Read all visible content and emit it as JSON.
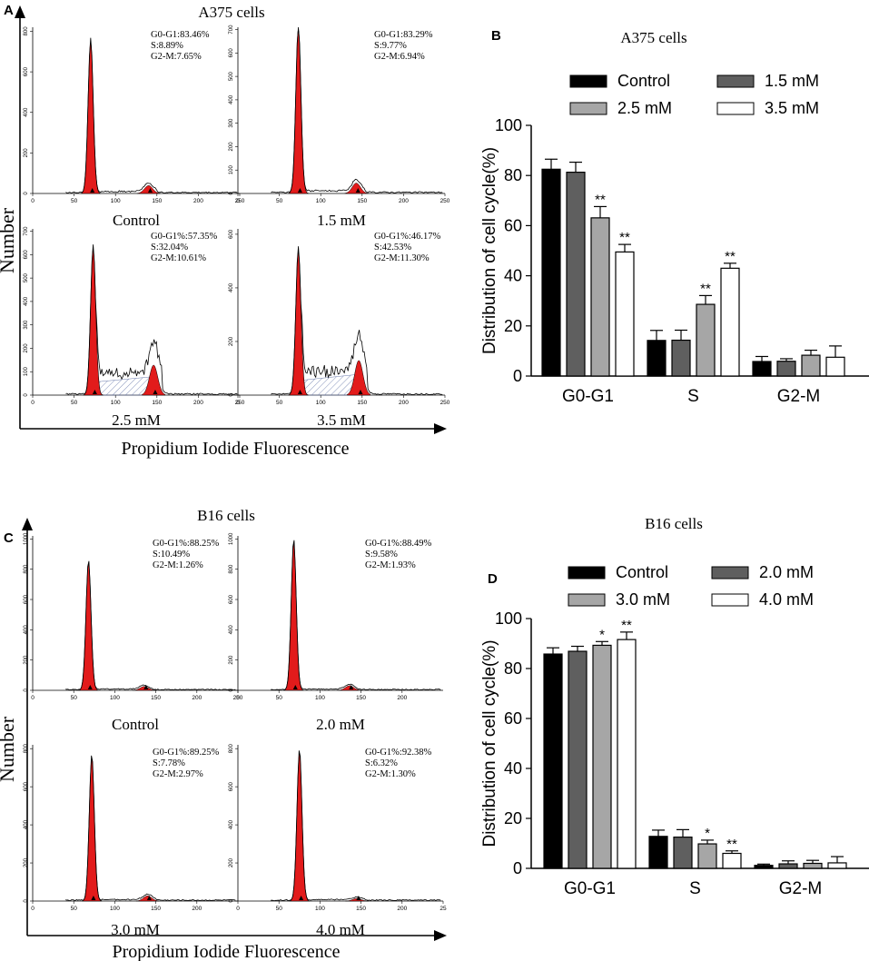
{
  "chart_data": [
    {
      "id": "A",
      "type": "histogram",
      "title": "A375 cells",
      "ylabel": "Number",
      "xlabel": "Propidium Iodide Fluorescence",
      "plots": [
        {
          "label": "Control",
          "stats": [
            "G0-G1:83.46%",
            "S:8.89%",
            "G2-M:7.65%"
          ],
          "yticks": [
            "0",
            "200",
            "400",
            "600",
            "800"
          ],
          "xticks": [
            "0",
            "50",
            "100",
            "150",
            "200",
            "250"
          ],
          "ymax": 840,
          "g1": 70,
          "g1_height": 760,
          "g2": 140,
          "g2_height": 40,
          "s_level": 5
        },
        {
          "label": "1.5 mM",
          "stats": [
            "G0-G1:83.29%",
            "S:9.77%",
            "G2-M:6.94%"
          ],
          "yticks": [
            "0",
            "100",
            "200",
            "300",
            "400",
            "500",
            "600",
            "700"
          ],
          "xticks": [
            "0",
            "50",
            "100",
            "150",
            "200",
            "250"
          ],
          "ymax": 720,
          "g1": 73,
          "g1_height": 710,
          "g2": 143,
          "g2_height": 45,
          "s_level": 6
        },
        {
          "label": "2.5 mM",
          "stats": [
            "G0-G1%:57.35%",
            "S:32.04%",
            "G2-M:10.61%"
          ],
          "yticks": [
            "0",
            "100",
            "200",
            "300",
            "400",
            "500",
            "600",
            "700"
          ],
          "xticks": [
            "0",
            "50",
            "100",
            "150",
            "200",
            "250"
          ],
          "ymax": 720,
          "g1": 73,
          "g1_height": 630,
          "g2": 146,
          "g2_height": 130,
          "s_level": 80
        },
        {
          "label": "3.5 mM",
          "stats": [
            "G0-G1%:46.17%",
            "S:42.53%",
            "G2-M:11.30%"
          ],
          "yticks": [
            "0",
            "200",
            "400",
            "600"
          ],
          "xticks": [
            "0",
            "50",
            "100",
            "150",
            "200",
            "250"
          ],
          "ymax": 720,
          "g1": 73,
          "g1_height": 620,
          "g2": 146,
          "g2_height": 150,
          "s_level": 90
        }
      ]
    },
    {
      "id": "B",
      "type": "bar",
      "title": "A375 cells",
      "ylabel": "Distribution of cell cycle(%)",
      "ylim": [
        0,
        100
      ],
      "yticks": [
        "0",
        "20",
        "40",
        "60",
        "80",
        "100"
      ],
      "categories": [
        "G0-G1",
        "S",
        "G2-M"
      ],
      "series": [
        {
          "name": "Control",
          "values": [
            82.5,
            14.2,
            5.8
          ],
          "errors": [
            4,
            4,
            2
          ],
          "sig": [
            "",
            "",
            ""
          ]
        },
        {
          "name": "1.5 mM",
          "values": [
            81.3,
            14.3,
            5.9
          ],
          "errors": [
            4,
            4,
            1
          ],
          "sig": [
            "",
            "",
            ""
          ]
        },
        {
          "name": "2.5 mM",
          "values": [
            63.1,
            28.6,
            8.3
          ],
          "errors": [
            4.5,
            3.5,
            2
          ],
          "sig": [
            "**",
            "**",
            ""
          ]
        },
        {
          "name": "3.5 mM",
          "values": [
            49.5,
            43.0,
            7.5
          ],
          "errors": [
            3,
            2,
            4.5
          ],
          "sig": [
            "**",
            "**",
            ""
          ]
        }
      ],
      "colors": [
        "#000000",
        "#5f5f5f",
        "#a6a6a6",
        "#ffffff"
      ]
    },
    {
      "id": "C",
      "type": "histogram",
      "title": "B16 cells",
      "ylabel": "Number",
      "xlabel": "Propidium Iodide Fluorescence",
      "plots": [
        {
          "label": "Control",
          "stats": [
            "G0-G1%:88.25%",
            "S:10.49%",
            "G2-M:1.26%"
          ],
          "yticks": [
            "0",
            "200",
            "400",
            "600",
            "800",
            "1000"
          ],
          "xticks": [
            "0",
            "50",
            "100",
            "150",
            "200",
            "250"
          ],
          "ymax": 1000,
          "g1": 68,
          "g1_height": 820,
          "g2": 136,
          "g2_height": 25,
          "s_level": 3
        },
        {
          "label": "2.0 mM",
          "stats": [
            "G0-G1%:88.49%",
            "S:9.58%",
            "G2-M:1.93%"
          ],
          "yticks": [
            "0",
            "200",
            "400",
            "600",
            "800",
            "1000"
          ],
          "xticks": [
            "0",
            "50",
            "100",
            "150",
            "200"
          ],
          "ymax": 1000,
          "g1": 68,
          "g1_height": 950,
          "g2": 136,
          "g2_height": 30,
          "s_level": 3
        },
        {
          "label": "3.0 mM",
          "stats": [
            "G0-G1%:89.25%",
            "S:7.78%",
            "G2-M:2.97%"
          ],
          "yticks": [
            "0",
            "200",
            "400",
            "600",
            "800"
          ],
          "xticks": [
            "0",
            "50",
            "100",
            "150",
            "200"
          ],
          "ymax": 900,
          "g1": 72,
          "g1_height": 820,
          "g2": 140,
          "g2_height": 30,
          "s_level": 3
        },
        {
          "label": "4.0 mM",
          "stats": [
            "G0-G1%:92.38%",
            "S:6.32%",
            "G2-M:1.30%"
          ],
          "yticks": [
            "0",
            "200",
            "400",
            "600",
            "800"
          ],
          "xticks": [
            "0",
            "50",
            "100",
            "150",
            "200",
            "25"
          ],
          "ymax": 900,
          "g1": 75,
          "g1_height": 850,
          "g2": 145,
          "g2_height": 15,
          "s_level": 3
        }
      ]
    },
    {
      "id": "D",
      "type": "bar",
      "title": "B16 cells",
      "ylabel": "Distribution of cell cycle(%)",
      "ylim": [
        0,
        100
      ],
      "yticks": [
        "0",
        "20",
        "40",
        "60",
        "80",
        "100"
      ],
      "categories": [
        "G0-G1",
        "S",
        "G2-M"
      ],
      "series": [
        {
          "name": "Control",
          "values": [
            85.8,
            12.8,
            1.2
          ],
          "errors": [
            2.5,
            2.5,
            0.5
          ],
          "sig": [
            "",
            "",
            ""
          ]
        },
        {
          "name": "2.0 mM",
          "values": [
            86.9,
            12.5,
            1.8
          ],
          "errors": [
            2,
            3,
            1.2
          ],
          "sig": [
            "",
            "",
            ""
          ]
        },
        {
          "name": "3.0 mM",
          "values": [
            89.3,
            9.8,
            2.0
          ],
          "errors": [
            1.5,
            1.5,
            1.2
          ],
          "sig": [
            "*",
            "*",
            ""
          ]
        },
        {
          "name": "4.0 mM",
          "values": [
            91.6,
            6.0,
            2.2
          ],
          "errors": [
            3,
            1,
            2.5
          ],
          "sig": [
            "**",
            "**",
            ""
          ]
        }
      ],
      "colors": [
        "#000000",
        "#5f5f5f",
        "#a6a6a6",
        "#ffffff"
      ]
    }
  ],
  "panel_letters": [
    "A",
    "B",
    "C",
    "D"
  ]
}
